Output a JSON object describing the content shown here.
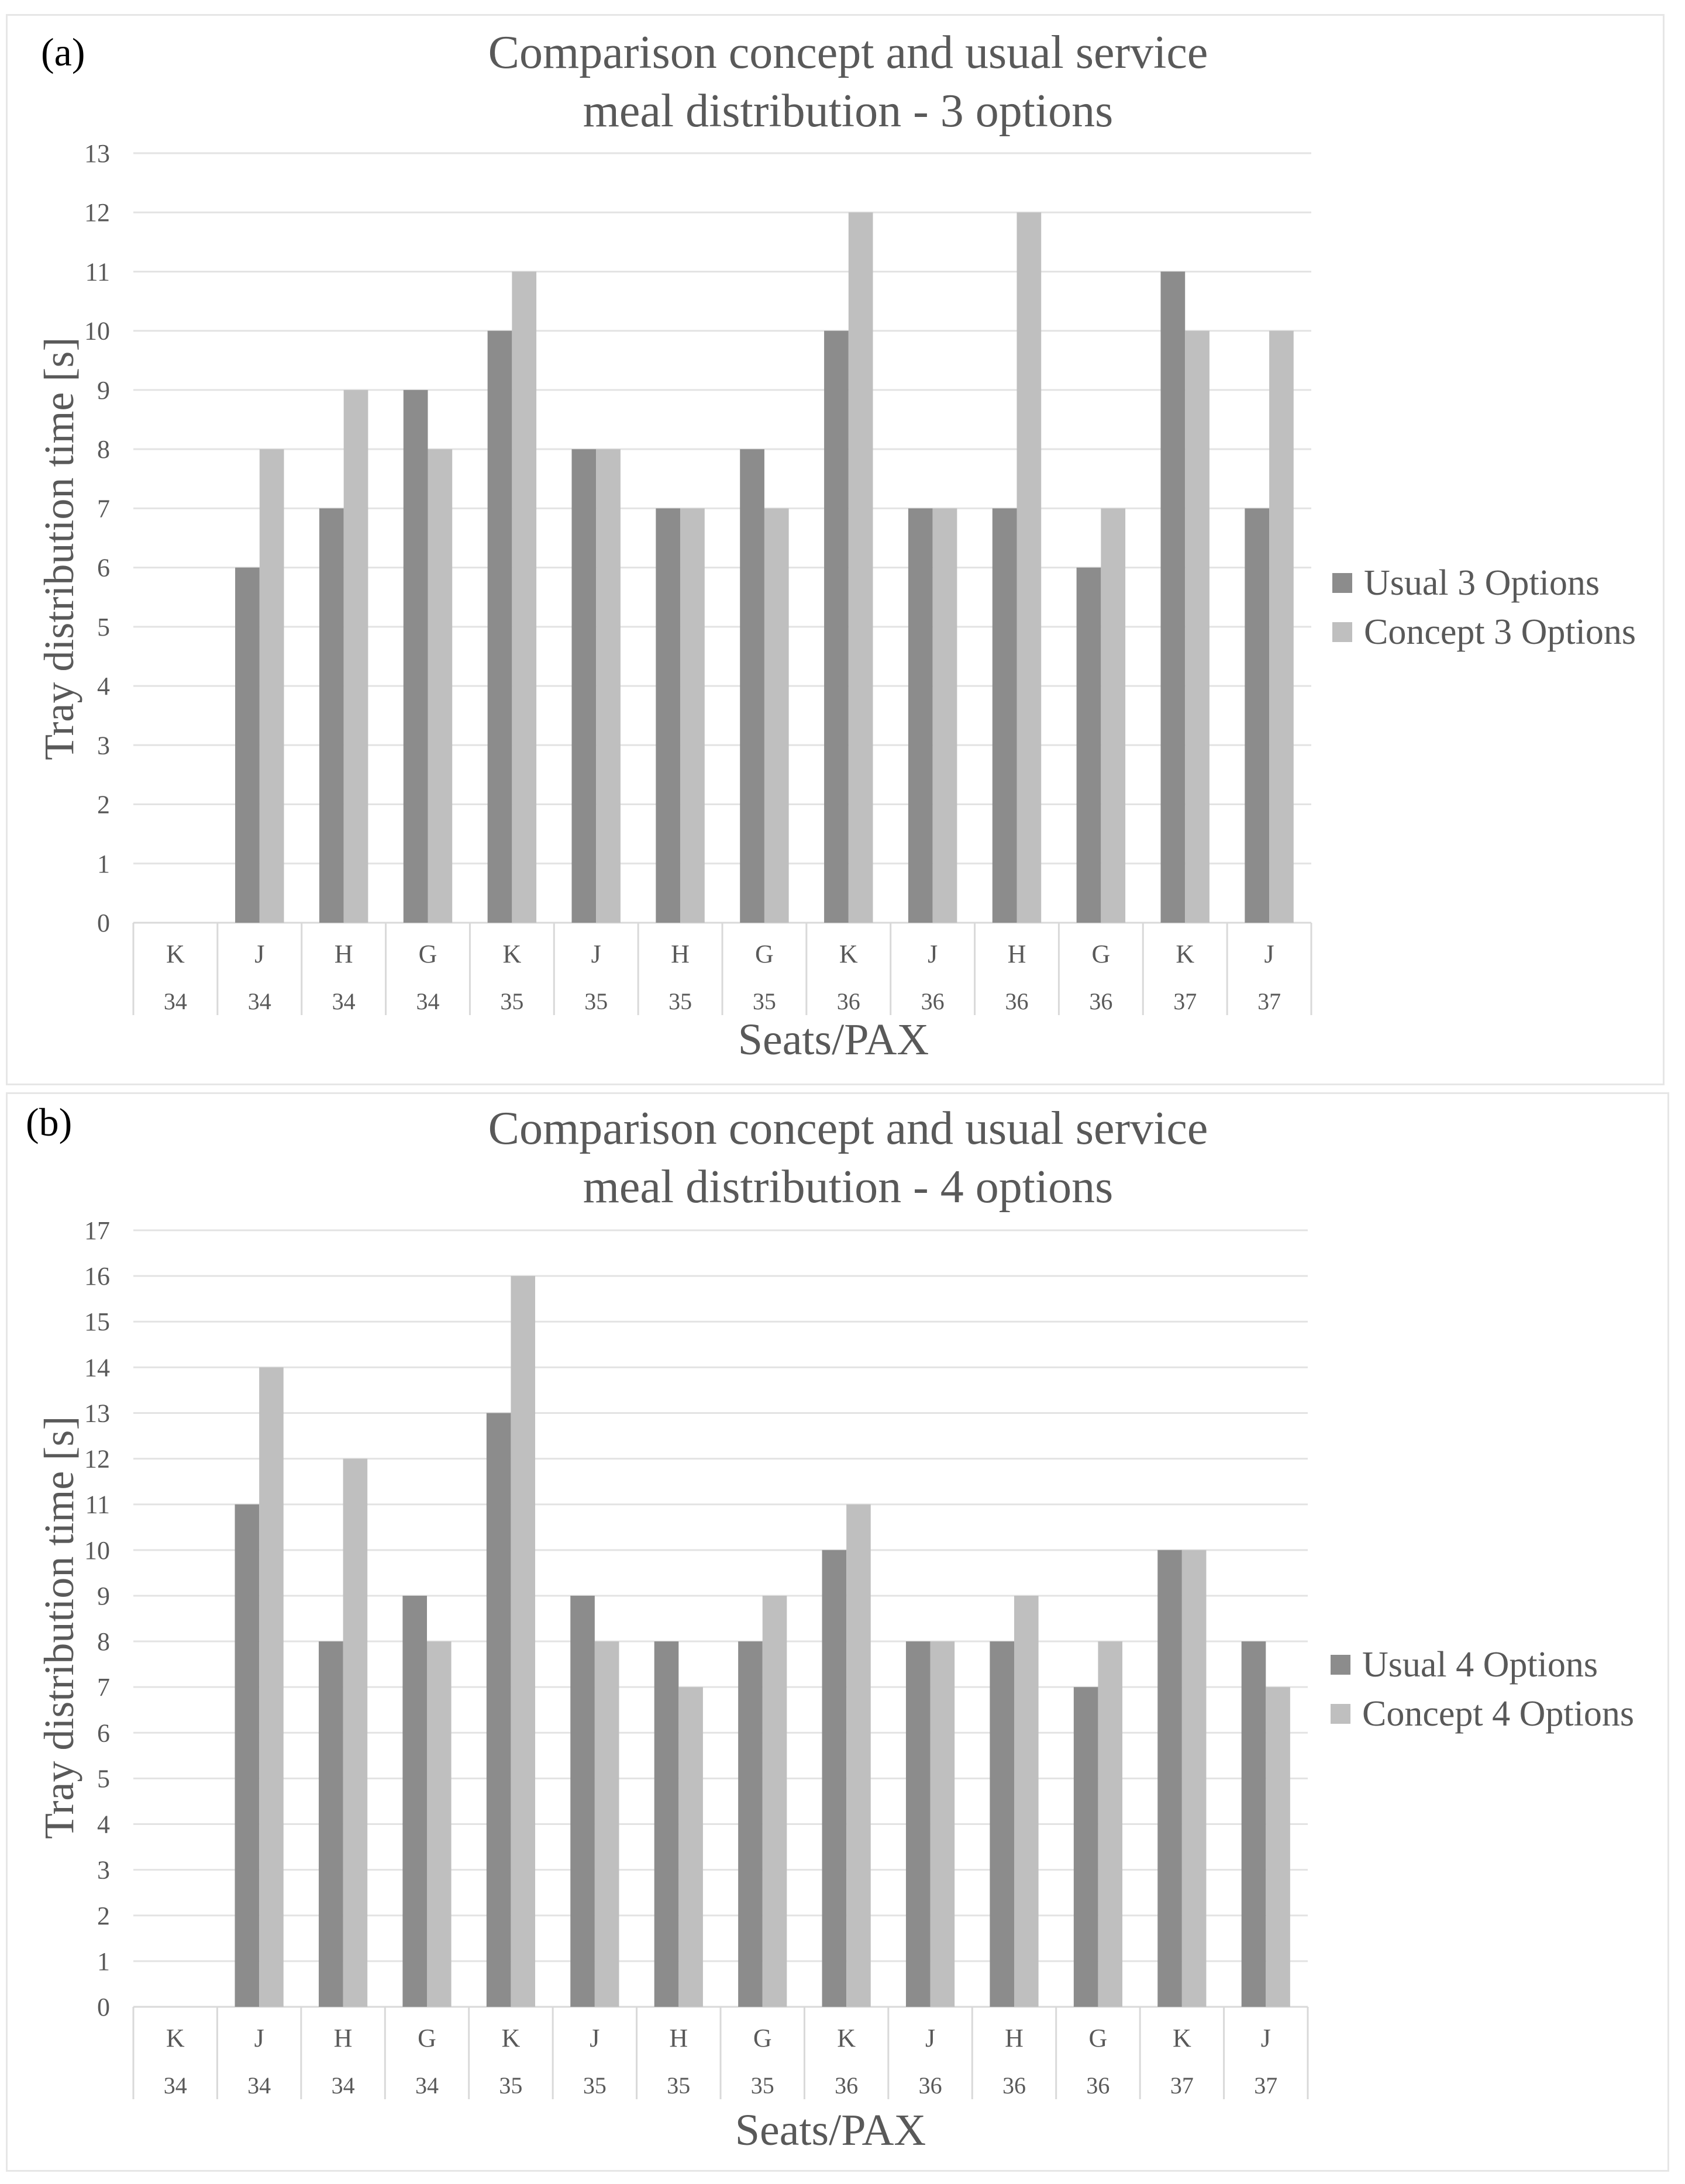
{
  "chart_data": [
    {
      "panel_label": "(a)",
      "type": "bar",
      "title": [
        "Comparison concept and usual service",
        "meal distribution - 3 options"
      ],
      "xlabel": "Seats/PAX",
      "ylabel": "Tray distribution time [s]",
      "ylim": [
        0,
        13
      ],
      "yticks": [
        0,
        1,
        2,
        3,
        4,
        5,
        6,
        7,
        8,
        9,
        10,
        11,
        12,
        13
      ],
      "grid": true,
      "legend": "right",
      "categories": [
        "K",
        "J",
        "H",
        "G",
        "K",
        "J",
        "H",
        "G",
        "K",
        "J",
        "H",
        "G",
        "K",
        "J"
      ],
      "category_rows": [
        "34",
        "34",
        "34",
        "34",
        "35",
        "35",
        "35",
        "35",
        "36",
        "36",
        "36",
        "36",
        "37",
        "37"
      ],
      "series": [
        {
          "name": "Usual 3 Options",
          "color": "#8c8c8c",
          "values": [
            0,
            6,
            7,
            9,
            10,
            8,
            7,
            8,
            10,
            7,
            7,
            6,
            11,
            7
          ]
        },
        {
          "name": "Concept 3 Options",
          "color": "#bfbfbf",
          "values": [
            0,
            8,
            9,
            8,
            11,
            8,
            7,
            7,
            12,
            7,
            12,
            7,
            10,
            10
          ]
        }
      ]
    },
    {
      "panel_label": "(b)",
      "type": "bar",
      "title": [
        "Comparison concept and usual service",
        "meal distribution - 4 options"
      ],
      "xlabel": "Seats/PAX",
      "ylabel": "Tray distribution time [s]",
      "ylim": [
        0,
        17
      ],
      "yticks": [
        0,
        1,
        2,
        3,
        4,
        5,
        6,
        7,
        8,
        9,
        10,
        11,
        12,
        13,
        14,
        15,
        16,
        17
      ],
      "grid": true,
      "legend": "right",
      "categories": [
        "K",
        "J",
        "H",
        "G",
        "K",
        "J",
        "H",
        "G",
        "K",
        "J",
        "H",
        "G",
        "K",
        "J"
      ],
      "category_rows": [
        "34",
        "34",
        "34",
        "34",
        "35",
        "35",
        "35",
        "35",
        "36",
        "36",
        "36",
        "36",
        "37",
        "37"
      ],
      "series": [
        {
          "name": "Usual 4 Options",
          "color": "#8c8c8c",
          "values": [
            0,
            11,
            8,
            9,
            13,
            9,
            8,
            8,
            10,
            8,
            8,
            7,
            10,
            8
          ]
        },
        {
          "name": "Concept 4 Options",
          "color": "#bfbfbf",
          "values": [
            0,
            14,
            12,
            8,
            16,
            8,
            7,
            9,
            11,
            8,
            9,
            8,
            10,
            7
          ]
        }
      ]
    }
  ]
}
